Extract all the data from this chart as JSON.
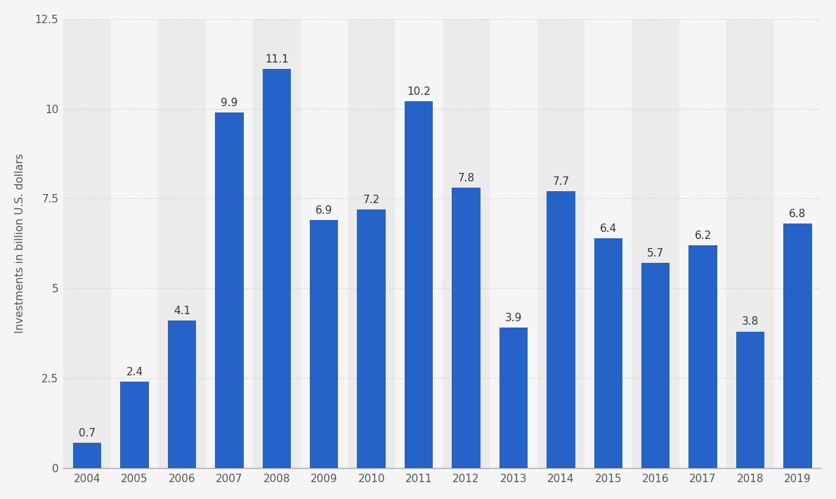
{
  "years": [
    "2004",
    "2005",
    "2006",
    "2007",
    "2008",
    "2009",
    "2010",
    "2011",
    "2012",
    "2013",
    "2014",
    "2015",
    "2016",
    "2017",
    "2018",
    "2019"
  ],
  "values": [
    0.7,
    2.4,
    4.1,
    9.9,
    11.1,
    6.9,
    7.2,
    10.2,
    7.8,
    3.9,
    7.7,
    6.4,
    5.7,
    6.2,
    3.8,
    6.8
  ],
  "bar_color": "#2563c9",
  "background_color": "#f5f5f5",
  "plot_bg_color": "#f5f5f5",
  "ylabel": "Investments in billion U.S. dollars",
  "ylim": [
    0,
    12.5
  ],
  "yticks": [
    0,
    2.5,
    5.0,
    7.5,
    10.0,
    12.5
  ],
  "grid_color": "#cccccc",
  "label_fontsize": 11,
  "tick_fontsize": 11,
  "bar_label_fontsize": 11,
  "stripe_light": "#ebebeb",
  "stripe_dark": "#f5f5f5",
  "stripe_pattern": [
    1,
    0,
    1,
    0,
    1,
    0,
    1,
    0,
    1,
    0,
    1,
    0,
    1,
    0,
    1,
    0
  ]
}
